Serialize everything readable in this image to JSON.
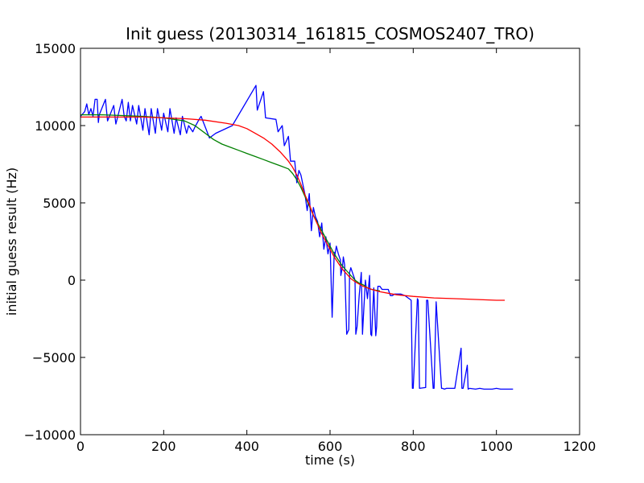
{
  "chart_data": {
    "type": "line",
    "title": "Init guess (20130314_161815_COSMOS2407_TRO)",
    "xlabel": "time (s)",
    "ylabel": "initial guess result (Hz)",
    "xlim": [
      0,
      1200
    ],
    "ylim": [
      -10000,
      15000
    ],
    "x_ticks": [
      0,
      200,
      400,
      600,
      800,
      1000,
      1200
    ],
    "y_ticks": [
      -10000,
      -5000,
      0,
      5000,
      10000,
      15000
    ],
    "x_tick_labels": [
      "0",
      "200",
      "400",
      "600",
      "800",
      "1000",
      "1200"
    ],
    "y_tick_labels": [
      "−10000",
      "−5000",
      "0",
      "5000",
      "10000",
      "15000"
    ],
    "grid": false,
    "colors": {
      "blue": "#0000ff",
      "green": "#008000",
      "red": "#ff0000"
    },
    "series": [
      {
        "color": "blue",
        "x": [
          0,
          10,
          15,
          20,
          25,
          30,
          35,
          40,
          43,
          45,
          60,
          65,
          80,
          85,
          100,
          105,
          110,
          115,
          120,
          125,
          135,
          140,
          150,
          155,
          165,
          170,
          180,
          185,
          195,
          200,
          210,
          215,
          225,
          230,
          240,
          245,
          255,
          260,
          270,
          275,
          285,
          290,
          310,
          325,
          365,
          422,
          425,
          440,
          445,
          470,
          475,
          485,
          490,
          500,
          505,
          515,
          520,
          525,
          530,
          540,
          545,
          550,
          555,
          560,
          565,
          570,
          575,
          580,
          585,
          590,
          595,
          600,
          605,
          610,
          611,
          615,
          620,
          625,
          626,
          630,
          632,
          635,
          640,
          645,
          647,
          650,
          660,
          662,
          665,
          670,
          675,
          678,
          680,
          685,
          690,
          695,
          698,
          700,
          705,
          710,
          712,
          715,
          720,
          725,
          730,
          740,
          745,
          750,
          755,
          760,
          765,
          770,
          775,
          780,
          785,
          790,
          795,
          798,
          800,
          810,
          812,
          815,
          830,
          832,
          835,
          848,
          850,
          855,
          868,
          870,
          875,
          880,
          900,
          915,
          917,
          920,
          930,
          932,
          935,
          950,
          960,
          970,
          980,
          990,
          1000,
          1010,
          1020,
          1040
        ],
        "y": [
          10600,
          10900,
          11400,
          10700,
          11100,
          10600,
          11700,
          11700,
          10200,
          10700,
          11700,
          10300,
          11300,
          10100,
          11700,
          10600,
          10300,
          11500,
          10300,
          11300,
          10100,
          11300,
          9700,
          11100,
          9400,
          11100,
          9500,
          11100,
          9700,
          10800,
          9600,
          11100,
          9500,
          10500,
          9400,
          10600,
          9500,
          10000,
          9600,
          9900,
          10400,
          10600,
          9200,
          9500,
          10000,
          12600,
          11000,
          12200,
          10500,
          10400,
          9600,
          10000,
          8700,
          9300,
          7700,
          7700,
          6300,
          7100,
          6800,
          5500,
          4500,
          5600,
          3200,
          4700,
          4100,
          3800,
          2800,
          3700,
          2000,
          2800,
          1700,
          2400,
          -2400,
          1800,
          1500,
          2200,
          1700,
          1300,
          300,
          900,
          1500,
          1000,
          -3500,
          -3200,
          500,
          800,
          0,
          -3500,
          -3000,
          -1000,
          500,
          -3500,
          -2500,
          0,
          -1200,
          300,
          -3500,
          -3600,
          -500,
          -3600,
          -3000,
          -400,
          -400,
          -600,
          -600,
          -600,
          -1000,
          -1000,
          -900,
          -900,
          -900,
          -900,
          -950,
          -1000,
          -1100,
          -1200,
          -1300,
          -7000,
          -7000,
          -1200,
          -1300,
          -7000,
          -6950,
          -1300,
          -1300,
          -7000,
          -7000,
          -1400,
          -7000,
          -7000,
          -7050,
          -7000,
          -7000,
          -4400,
          -7000,
          -7000,
          -5500,
          -7050,
          -7000,
          -7050,
          -7000,
          -7050,
          -7050,
          -7050,
          -7000,
          -7050,
          -7050,
          -7050
        ]
      },
      {
        "color": "green",
        "x": [
          0,
          50,
          100,
          150,
          200,
          250,
          275,
          300,
          320,
          340,
          360,
          380,
          400,
          420,
          440,
          460,
          480,
          500,
          510,
          520,
          530,
          540,
          550,
          560,
          570,
          580,
          590,
          600,
          610,
          620,
          630,
          640,
          650,
          660,
          670,
          680,
          690,
          700,
          710,
          720
        ],
        "y": [
          10700,
          10700,
          10650,
          10600,
          10500,
          10300,
          10000,
          9500,
          9100,
          8800,
          8600,
          8400,
          8200,
          8000,
          7800,
          7600,
          7400,
          7200,
          6900,
          6500,
          6000,
          5400,
          4800,
          4200,
          3700,
          3200,
          2700,
          2200,
          1700,
          1300,
          900,
          600,
          300,
          0,
          -200,
          -300,
          -500,
          -600,
          -650,
          -700
        ]
      },
      {
        "color": "red",
        "x": [
          0,
          50,
          100,
          150,
          200,
          250,
          300,
          350,
          380,
          400,
          420,
          440,
          460,
          480,
          500,
          510,
          520,
          530,
          540,
          550,
          560,
          570,
          580,
          590,
          600,
          610,
          620,
          630,
          640,
          650,
          660,
          680,
          700,
          720,
          740,
          760,
          780,
          800,
          850,
          900,
          950,
          1000,
          1020
        ],
        "y": [
          10550,
          10550,
          10550,
          10550,
          10500,
          10450,
          10350,
          10150,
          10000,
          9800,
          9500,
          9200,
          8800,
          8300,
          7700,
          7300,
          6800,
          6200,
          5500,
          4900,
          4200,
          3600,
          3000,
          2500,
          2000,
          1500,
          1100,
          700,
          400,
          100,
          -100,
          -400,
          -600,
          -750,
          -850,
          -950,
          -1000,
          -1050,
          -1150,
          -1200,
          -1250,
          -1300,
          -1300
        ]
      }
    ]
  }
}
